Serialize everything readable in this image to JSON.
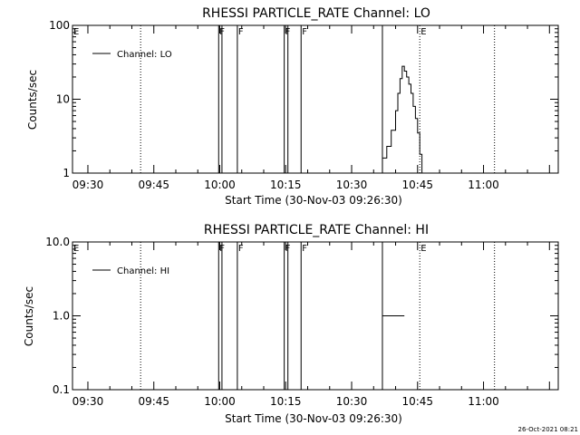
{
  "chart_data": [
    {
      "type": "line",
      "title": "RHESSI PARTICLE_RATE Channel: LO",
      "xlabel": "Start Time (30-Nov-03 09:26:30)",
      "ylabel": "Counts/sec",
      "yscale": "log",
      "ylim": [
        1,
        100
      ],
      "yticks": [
        1,
        10,
        100
      ],
      "ytick_labels": [
        "1",
        "10",
        "100"
      ],
      "xlim": [
        "09:26:30",
        "11:17:00"
      ],
      "xtick_labels": [
        "09:30",
        "09:45",
        "10:00",
        "10:15",
        "10:30",
        "10:45",
        "11:00"
      ],
      "grid": false,
      "legend": {
        "position": "top-left",
        "entries": [
          "Channel: LO"
        ]
      },
      "series": [
        {
          "name": "Channel: LO",
          "x": [
            "10:36:00",
            "10:37:00",
            "10:38:00",
            "10:39:00",
            "10:40:00",
            "10:40:30",
            "10:41:00",
            "10:41:30",
            "10:42:00",
            "10:42:30",
            "10:43:00",
            "10:43:30",
            "10:44:00",
            "10:44:30",
            "10:45:00",
            "10:45:30",
            "10:46:00"
          ],
          "y": [
            1.0,
            1.6,
            2.3,
            3.8,
            7.0,
            12.0,
            19.0,
            28.0,
            24.0,
            20.0,
            16.0,
            12.0,
            8.0,
            5.5,
            3.5,
            1.8,
            1.0
          ]
        }
      ],
      "events": [
        {
          "label": "E",
          "time": "09:26:30",
          "style": "solid"
        },
        {
          "label": "",
          "time": "09:42:00",
          "style": "dotted"
        },
        {
          "label": "F",
          "time": "09:59:45",
          "style": "solid"
        },
        {
          "label": "",
          "time": "10:00:30",
          "style": "solid"
        },
        {
          "label": "F",
          "time": "10:04:00",
          "style": "solid"
        },
        {
          "label": "F",
          "time": "10:14:40",
          "style": "solid"
        },
        {
          "label": "",
          "time": "10:15:30",
          "style": "solid"
        },
        {
          "label": "F",
          "time": "10:18:30",
          "style": "solid"
        },
        {
          "label": "",
          "time": "10:37:00",
          "style": "solid"
        },
        {
          "label": "E",
          "time": "10:45:30",
          "style": "dotted"
        },
        {
          "label": "",
          "time": "11:02:30",
          "style": "dotted"
        }
      ]
    },
    {
      "type": "line",
      "title": "RHESSI PARTICLE_RATE Channel: HI",
      "xlabel": "Start Time (30-Nov-03 09:26:30)",
      "ylabel": "Counts/sec",
      "yscale": "log",
      "ylim": [
        0.1,
        10
      ],
      "yticks": [
        0.1,
        1,
        10
      ],
      "ytick_labels": [
        "0.1",
        "1.0",
        "10.0"
      ],
      "xlim": [
        "09:26:30",
        "11:17:00"
      ],
      "xtick_labels": [
        "09:30",
        "09:45",
        "10:00",
        "10:15",
        "10:30",
        "10:45",
        "11:00"
      ],
      "grid": false,
      "legend": {
        "position": "top-left",
        "entries": [
          "Channel: HI"
        ]
      },
      "series": [
        {
          "name": "Channel: HI",
          "x": [
            "10:37:00",
            "10:42:00"
          ],
          "y": [
            1.0,
            1.0
          ]
        }
      ],
      "events": [
        {
          "label": "E",
          "time": "09:26:30",
          "style": "solid"
        },
        {
          "label": "",
          "time": "09:42:00",
          "style": "dotted"
        },
        {
          "label": "F",
          "time": "09:59:45",
          "style": "solid"
        },
        {
          "label": "",
          "time": "10:00:30",
          "style": "solid"
        },
        {
          "label": "F",
          "time": "10:04:00",
          "style": "solid"
        },
        {
          "label": "F",
          "time": "10:14:40",
          "style": "solid"
        },
        {
          "label": "",
          "time": "10:15:30",
          "style": "solid"
        },
        {
          "label": "F",
          "time": "10:18:30",
          "style": "solid"
        },
        {
          "label": "",
          "time": "10:37:00",
          "style": "solid"
        },
        {
          "label": "E",
          "time": "10:45:30",
          "style": "dotted"
        },
        {
          "label": "",
          "time": "11:02:30",
          "style": "dotted"
        }
      ]
    }
  ],
  "footer": {
    "timestamp": "26-Oct-2021 08:21"
  }
}
